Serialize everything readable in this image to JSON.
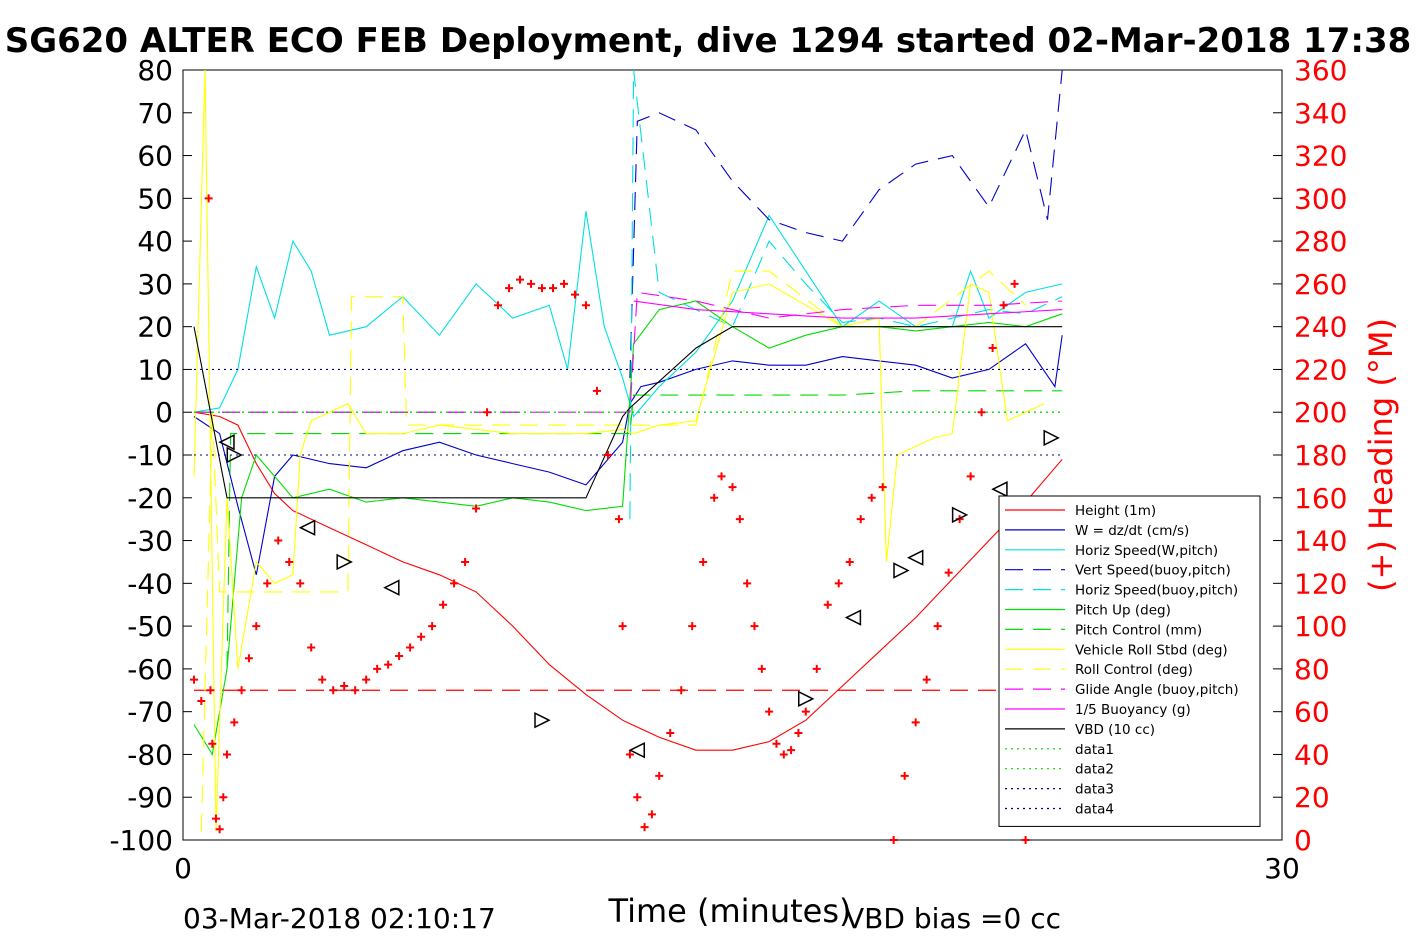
{
  "title": "SG620 ALTER ECO FEB Deployment, dive 1294 started 02-Mar-2018 17:38",
  "footer": {
    "left": "03-Mar-2018 02:10:17",
    "right": "VBD bias =0 cc"
  },
  "chart_data": {
    "type": "line",
    "xlabel": "Time (minutes)",
    "ylabel_right": "(+) Heading (°M)",
    "xlim": [
      0,
      30
    ],
    "ylim_left": [
      -100,
      80
    ],
    "ylim_right": [
      0,
      360
    ],
    "x_ticks": [
      "0",
      "30"
    ],
    "y_ticks_left": [
      "80",
      "70",
      "60",
      "50",
      "40",
      "30",
      "20",
      "10",
      "0",
      "-10",
      "-20",
      "-30",
      "-40",
      "-50",
      "-60",
      "-70",
      "-80",
      "-90",
      "-100"
    ],
    "y_ticks_right": [
      "360",
      "340",
      "320",
      "300",
      "280",
      "260",
      "240",
      "220",
      "200",
      "180",
      "160",
      "140",
      "120",
      "100",
      "80",
      "60",
      "40",
      "20",
      "0"
    ],
    "legend_position": "bottom-right",
    "colors": {
      "red": "#ff0000",
      "blue": "#0000cc",
      "cyan": "#00e0e0",
      "green": "#00dd00",
      "yellow": "#ffff00",
      "magenta": "#ff00ff",
      "black": "#000000",
      "purple": "#7a3cff"
    },
    "series": [
      {
        "name": "Height (1m)",
        "color": "#ff0000",
        "dash": "",
        "x": [
          0.3,
          1.0,
          1.5,
          2.0,
          2.5,
          3.0,
          4.0,
          5.0,
          6.0,
          7.0,
          8.0,
          9.0,
          10.0,
          11.0,
          12.0,
          13.0,
          14.0,
          15.0,
          16.0,
          17.0,
          18.0,
          19.0,
          20.0,
          21.0,
          22.0,
          23.0,
          24.0
        ],
        "y": [
          0,
          -1,
          -3,
          -12,
          -19,
          -23,
          -27,
          -31,
          -35,
          -38,
          -42,
          -50,
          -59,
          -66,
          -72,
          -76,
          -79,
          -79,
          -77,
          -72,
          -64,
          -56,
          -48,
          -39,
          -30,
          -21,
          -11
        ]
      },
      {
        "name": "W = dz/dt (cm/s)",
        "color": "#0000cc",
        "dash": "",
        "x": [
          0.3,
          1.0,
          1.5,
          2.0,
          2.5,
          3.0,
          4.0,
          5.0,
          6.0,
          7.0,
          8.0,
          9.0,
          10.0,
          11.0,
          12.0,
          12.2,
          12.5,
          13.0,
          14.0,
          15.0,
          16.0,
          17.0,
          18.0,
          19.0,
          20.0,
          21.0,
          22.0,
          23.0,
          23.8,
          24.0
        ],
        "y": [
          -1,
          -5,
          -22,
          -38,
          -15,
          -10,
          -12,
          -13,
          -9,
          -7,
          -10,
          -12,
          -14,
          -17,
          -7,
          2,
          6,
          7,
          10,
          12,
          11,
          11,
          13,
          12,
          11,
          8,
          10,
          16,
          6,
          18
        ]
      },
      {
        "name": "Horiz Speed(W,pitch)",
        "color": "#00e0e0",
        "dash": "",
        "x": [
          0.3,
          1.0,
          1.5,
          2.0,
          2.5,
          3.0,
          3.5,
          4.0,
          5.0,
          6.0,
          7.0,
          8.0,
          9.0,
          10.0,
          10.5,
          11.0,
          11.5,
          12.0,
          12.3,
          13.0,
          14.0,
          15.0,
          16.0,
          17.0,
          18.0,
          19.0,
          20.0,
          21.0,
          21.5,
          22.0,
          23.0,
          24.0
        ],
        "y": [
          0,
          1,
          10,
          34,
          22,
          40,
          33,
          18,
          20,
          27,
          18,
          30,
          22,
          25,
          10,
          47,
          20,
          8,
          -1,
          6,
          14,
          26,
          46,
          33,
          20,
          26,
          20,
          20,
          33,
          22,
          28,
          30
        ]
      },
      {
        "name": "Vert Speed(buoy,pitch)",
        "color": "#0000cc",
        "dash": "18,10",
        "x": [
          12.2,
          12.4,
          13.0,
          14.0,
          15.0,
          16.0,
          17.0,
          18.0,
          19.0,
          20.0,
          21.0,
          22.0,
          23.0,
          23.6,
          24.0
        ],
        "y": [
          8,
          68,
          70,
          66,
          54,
          45,
          42,
          40,
          52,
          58,
          60,
          48,
          66,
          45,
          80
        ]
      },
      {
        "name": "Horiz Speed(buoy,pitch)",
        "color": "#00e0e0",
        "dash": "18,10",
        "x": [
          12.2,
          12.3,
          13.0,
          14.0,
          15.0,
          16.0,
          17.0,
          18.0,
          19.0,
          20.0,
          21.0,
          22.0,
          23.0,
          24.0
        ],
        "y": [
          -25,
          80,
          28,
          24,
          20,
          40,
          30,
          21,
          22,
          20,
          22,
          24,
          23,
          27
        ]
      },
      {
        "name": "Pitch Up (deg)",
        "color": "#00dd00",
        "dash": "",
        "x": [
          0.3,
          0.8,
          1.2,
          1.6,
          2.0,
          2.5,
          3.0,
          4.0,
          5.0,
          6.0,
          7.0,
          8.0,
          9.0,
          10.0,
          11.0,
          12.0,
          12.3,
          13.0,
          14.0,
          15.0,
          16.0,
          17.0,
          18.0,
          19.0,
          20.0,
          21.0,
          22.0,
          23.0,
          24.0
        ],
        "y": [
          -73,
          -80,
          -60,
          -20,
          -10,
          -15,
          -20,
          -18,
          -21,
          -20,
          -21,
          -22,
          -20,
          -21,
          -23,
          -22,
          16,
          24,
          26,
          20,
          15,
          18,
          20,
          20,
          19,
          20,
          21,
          20,
          23
        ]
      },
      {
        "name": "Pitch Control (mm)",
        "color": "#00dd00",
        "dash": "18,10",
        "x": [
          1.2,
          1.3,
          2.0,
          4.0,
          6.0,
          8.0,
          10.0,
          11.0,
          12.2,
          12.3,
          14.0,
          16.0,
          18.0,
          20.0,
          22.0,
          24.0
        ],
        "y": [
          -60,
          -5,
          -5,
          -5,
          -5,
          -5,
          -5,
          -5,
          -5,
          4,
          4,
          4,
          4,
          5,
          5,
          5
        ]
      },
      {
        "name": "Vehicle Roll Stbd (deg)",
        "color": "#ffff00",
        "dash": "",
        "x": [
          0.3,
          0.6,
          0.9,
          1.2,
          1.5,
          2.0,
          2.5,
          3.0,
          3.2,
          3.5,
          4.0,
          4.5,
          5.0,
          5.5,
          6.0,
          7.0,
          8.0,
          9.0,
          10.0,
          11.0,
          12.0,
          12.3,
          13.0,
          14.0,
          15.0,
          16.0,
          17.0,
          18.0,
          19.0,
          19.2,
          19.5,
          20.0,
          20.5,
          21.0,
          21.5,
          22.0,
          22.5,
          23.0,
          23.5
        ],
        "y": [
          -15,
          80,
          -98,
          -20,
          -60,
          -35,
          -40,
          -38,
          -10,
          -2,
          0,
          2,
          -5,
          -5,
          -5,
          -3,
          -4,
          -5,
          -5,
          -5,
          -4,
          -5,
          -3,
          -2,
          28,
          30,
          25,
          20,
          22,
          -35,
          -10,
          -8,
          -6,
          -5,
          30,
          28,
          -2,
          0,
          2
        ]
      },
      {
        "name": "Roll Control (deg)",
        "color": "#ffff00",
        "dash": "18,10",
        "x": [
          0.5,
          0.8,
          1.0,
          2.0,
          3.0,
          4.5,
          4.6,
          6.0,
          6.1,
          8.0,
          10.0,
          12.0,
          12.3,
          14.0,
          15.0,
          16.0,
          18.0,
          20.0,
          22.0,
          23.0
        ],
        "y": [
          -98,
          0,
          -42,
          -42,
          -42,
          -42,
          27,
          27,
          -3,
          -3,
          -3,
          -3,
          -3,
          -3,
          33,
          33,
          20,
          20,
          33,
          25
        ]
      },
      {
        "name": "Glide Angle (buoy,pitch)",
        "color": "#ff00ff",
        "dash": "18,10",
        "x": [
          0.3,
          3.0,
          6.0,
          9.0,
          12.2,
          12.4,
          14.0,
          16.0,
          18.0,
          20.0,
          22.0,
          24.0
        ],
        "y": [
          0,
          0,
          0,
          0,
          0,
          28,
          26,
          22,
          24,
          25,
          25,
          26
        ]
      },
      {
        "name": "1/5 Buoyancy (g)",
        "color": "#ff00ff",
        "dash": "",
        "x": [
          12.3,
          14.0,
          16.0,
          18.0,
          20.0,
          22.0,
          24.0
        ],
        "y": [
          26,
          24,
          23,
          22,
          22,
          23,
          24
        ]
      },
      {
        "name": "VBD (10 cc)",
        "color": "#000000",
        "dash": "",
        "x": [
          0.3,
          1.2,
          1.5,
          3.0,
          6.0,
          9.0,
          10.0,
          11.0,
          12.0,
          12.2,
          14.0,
          14.8,
          15.0,
          18.0,
          20.0,
          22.0,
          24.0
        ],
        "y": [
          20,
          -20,
          -20,
          -20,
          -20,
          -20,
          -20,
          -20,
          -1,
          1,
          15,
          19,
          20,
          20,
          20,
          20,
          20
        ]
      },
      {
        "name": "data1",
        "color": "#00dd00",
        "dash": "2,4",
        "x": [
          0.3,
          24.0
        ],
        "y": [
          0,
          0
        ]
      },
      {
        "name": "data2",
        "color": "#00dd00",
        "dash": "2,4",
        "x": [
          0.3,
          24.0
        ],
        "y": [
          0,
          0
        ]
      },
      {
        "name": "data3",
        "color": "#000080",
        "dash": "2,4",
        "x": [
          0.3,
          24.0
        ],
        "y": [
          10,
          10
        ]
      },
      {
        "name": "data4",
        "color": "#000080",
        "dash": "2,4",
        "x": [
          0.3,
          24.0
        ],
        "y": [
          -10,
          -10
        ]
      }
    ],
    "reference_lines": [
      {
        "y": 0,
        "color": "#7a3cff",
        "dash": "18,10",
        "x": [
          0.3,
          9.5
        ]
      },
      {
        "y": -65,
        "color": "#ff0000",
        "dash": "18,10",
        "x": [
          0.3,
          24.0
        ]
      }
    ],
    "heading_points": {
      "color": "#ff0000",
      "x": [
        0.3,
        0.5,
        0.7,
        0.75,
        0.8,
        0.9,
        1.0,
        1.1,
        1.2,
        1.4,
        1.6,
        1.8,
        2.0,
        2.3,
        2.6,
        2.9,
        3.2,
        3.5,
        3.8,
        4.1,
        4.4,
        4.7,
        5.0,
        5.3,
        5.6,
        5.9,
        6.2,
        6.5,
        6.8,
        7.1,
        7.4,
        7.7,
        8.0,
        8.3,
        8.6,
        8.9,
        9.2,
        9.5,
        9.8,
        10.1,
        10.4,
        10.7,
        11.0,
        11.3,
        11.6,
        11.9,
        12.0,
        12.2,
        12.4,
        12.6,
        12.8,
        13.0,
        13.3,
        13.6,
        13.9,
        14.2,
        14.5,
        14.7,
        15.0,
        15.2,
        15.4,
        15.6,
        15.8,
        16.0,
        16.2,
        16.4,
        16.6,
        16.8,
        17.0,
        17.3,
        17.6,
        17.9,
        18.2,
        18.5,
        18.8,
        19.1,
        19.4,
        19.7,
        20.0,
        20.3,
        20.6,
        20.9,
        21.2,
        21.5,
        21.8,
        22.1,
        22.4,
        22.7,
        23.0,
        23.2
      ],
      "y": [
        75,
        65,
        300,
        70,
        45,
        10,
        5,
        20,
        40,
        55,
        70,
        85,
        100,
        120,
        140,
        130,
        120,
        90,
        75,
        70,
        72,
        70,
        75,
        80,
        82,
        86,
        90,
        95,
        100,
        110,
        120,
        130,
        155,
        200,
        250,
        258,
        262,
        260,
        258,
        258,
        260,
        255,
        250,
        210,
        180,
        150,
        100,
        40,
        20,
        6,
        12,
        30,
        50,
        70,
        100,
        130,
        160,
        170,
        165,
        150,
        120,
        100,
        80,
        60,
        45,
        40,
        42,
        50,
        60,
        80,
        110,
        120,
        130,
        150,
        160,
        165,
        0,
        30,
        55,
        75,
        100,
        125,
        150,
        170,
        200,
        230,
        250,
        260,
        0,
        10
      ]
    },
    "markers": {
      "type": "triangle",
      "color": "#000000",
      "x": [
        1.2,
        1.4,
        3.4,
        4.4,
        5.7,
        9.8,
        12.4,
        17.0,
        18.3,
        19.6,
        20.0,
        21.2,
        22.3,
        23.7
      ],
      "y": [
        -7,
        -10,
        -27,
        -35,
        -41,
        -72,
        -79,
        -67,
        -48,
        -37,
        -34,
        -24,
        -18,
        -6
      ]
    }
  }
}
